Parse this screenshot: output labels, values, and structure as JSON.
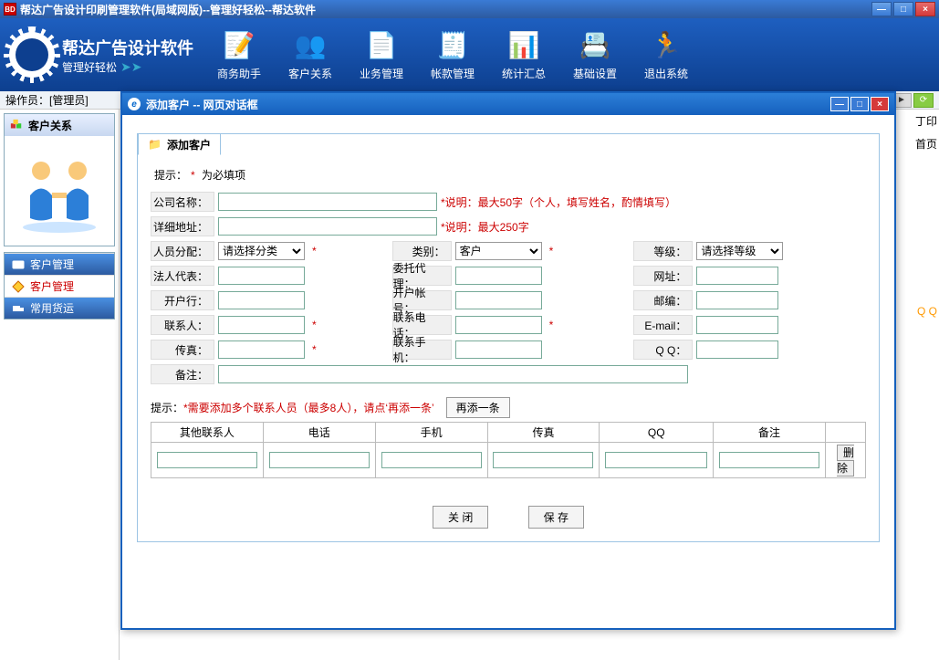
{
  "window": {
    "title": "帮达广告设计印刷管理软件(局域网版)--管理好轻松--帮达软件",
    "icon_text": "BD"
  },
  "logo": {
    "line1": "帮达广告设计软件",
    "line2": "管理好轻松"
  },
  "toolbar": [
    {
      "label": "商务助手",
      "icon": "📝"
    },
    {
      "label": "客户关系",
      "icon": "👥"
    },
    {
      "label": "业务管理",
      "icon": "📄"
    },
    {
      "label": "帐款管理",
      "icon": "🧾"
    },
    {
      "label": "统计汇总",
      "icon": "📊"
    },
    {
      "label": "基础设置",
      "icon": "📇"
    },
    {
      "label": "退出系统",
      "icon": "🏃"
    }
  ],
  "operator": {
    "label": "操作员：",
    "user": "[管理员]"
  },
  "right_peek": {
    "print": "丁印",
    "page": "首页",
    "qq": "Q Q"
  },
  "sidebar": {
    "panel_title": "客户关系",
    "items": [
      {
        "label": "客户管理"
      },
      {
        "label": "客户管理"
      },
      {
        "label": "常用货运"
      }
    ]
  },
  "dialog": {
    "title": "添加客户  --  网页对话框",
    "tab_label": "添加客户",
    "hint_prefix": "提示：",
    "hint_text": " 为必填项",
    "fields": {
      "company": {
        "label": "公司名称：",
        "note": "*说明：最大50字（个人，填写姓名，酌情填写）"
      },
      "address": {
        "label": "详细地址：",
        "note": "*说明：最大250字"
      },
      "category": {
        "label": "人员分配：",
        "placeholder": "请选择分类"
      },
      "type": {
        "label": "类别：",
        "value": "客户"
      },
      "grade": {
        "label": "等级：",
        "placeholder": "请选择等级"
      },
      "legal": {
        "label": "法人代表："
      },
      "agent": {
        "label": "委托代理："
      },
      "url": {
        "label": "网址："
      },
      "bank": {
        "label": "开户行："
      },
      "account": {
        "label": "开户帐号："
      },
      "zip": {
        "label": "邮编："
      },
      "contact": {
        "label": "联系人："
      },
      "phone": {
        "label": "联系电话："
      },
      "email": {
        "label": "E-mail："
      },
      "fax": {
        "label": "传真："
      },
      "mobile": {
        "label": "联系手机："
      },
      "qq": {
        "label": "Q Q："
      },
      "remark": {
        "label": "备注："
      }
    },
    "multi_contact": {
      "hint_prefix": "提示：",
      "hint_body": "*需要添加多个联系人员（最多8人），请点‘",
      "hint_link": "再添一条",
      "hint_suffix": "’",
      "add_btn": "再添一条",
      "cols": [
        "其他联系人",
        "电话",
        "手机",
        "传真",
        "QQ",
        "备注",
        ""
      ],
      "del": "删除"
    },
    "btn_close": "关 闭",
    "btn_save": "保 存"
  },
  "colors": {
    "titlebar_grad_top": "#3a7bd5",
    "titlebar_grad_bot": "#2c5aa0",
    "toolbar_grad_top": "#1e5fc0",
    "toolbar_grad_bot": "#0d3f8f",
    "dialog_border": "#1560bd",
    "form_border": "#9cc4e4",
    "required": "#c00"
  }
}
